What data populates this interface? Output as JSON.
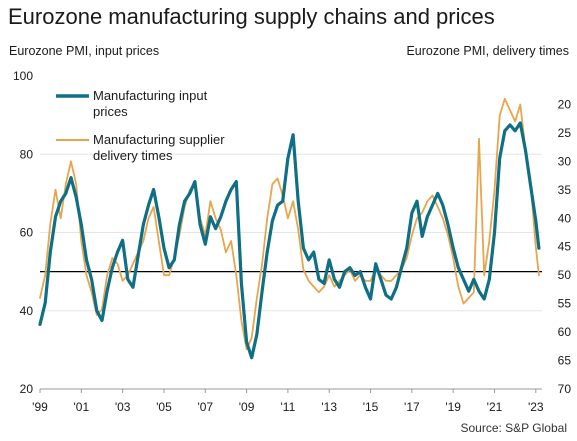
{
  "title": "Eurozone manufacturing supply chains and prices",
  "source": "Source: S&P Global",
  "chart_data": {
    "type": "line",
    "left_axis_label": "Eurozone PMI, input prices",
    "right_axis_label": "Eurozone PMI, delivery times",
    "left_ylim": [
      20,
      100
    ],
    "left_ticks": [
      20,
      40,
      60,
      80,
      100
    ],
    "right_ylim_inverted": [
      15,
      70
    ],
    "right_ticks": [
      20,
      25,
      30,
      35,
      40,
      45,
      50,
      55,
      60,
      65,
      70
    ],
    "xlim": [
      1999.0,
      2023.3
    ],
    "x_ticks": [
      {
        "x": 1999,
        "label": "'99"
      },
      {
        "x": 2001,
        "label": "'01"
      },
      {
        "x": 2003,
        "label": "'03"
      },
      {
        "x": 2005,
        "label": "'05"
      },
      {
        "x": 2007,
        "label": "'07"
      },
      {
        "x": 2009,
        "label": "'09"
      },
      {
        "x": 2011,
        "label": "'11"
      },
      {
        "x": 2013,
        "label": "'13"
      },
      {
        "x": 2015,
        "label": "'15"
      },
      {
        "x": 2017,
        "label": "'17"
      },
      {
        "x": 2019,
        "label": "'19"
      },
      {
        "x": 2021,
        "label": "'21"
      },
      {
        "x": 2023,
        "label": "'23"
      }
    ],
    "reference_line": 50,
    "grid": true,
    "legend": "top-left",
    "series": [
      {
        "name": "Manufacturing input prices",
        "axis": "left",
        "color": "#0e6f86",
        "points": [
          [
            1999.0,
            36.5
          ],
          [
            1999.25,
            42
          ],
          [
            1999.5,
            55
          ],
          [
            1999.75,
            64
          ],
          [
            2000.0,
            68
          ],
          [
            2000.25,
            70
          ],
          [
            2000.5,
            74
          ],
          [
            2000.75,
            69
          ],
          [
            2001.0,
            62
          ],
          [
            2001.25,
            53
          ],
          [
            2001.5,
            48
          ],
          [
            2001.75,
            40
          ],
          [
            2002.0,
            37.5
          ],
          [
            2002.25,
            45
          ],
          [
            2002.5,
            51
          ],
          [
            2002.75,
            55
          ],
          [
            2003.0,
            58
          ],
          [
            2003.25,
            48
          ],
          [
            2003.5,
            46
          ],
          [
            2003.75,
            54
          ],
          [
            2004.0,
            62
          ],
          [
            2004.25,
            67
          ],
          [
            2004.5,
            71
          ],
          [
            2004.75,
            64
          ],
          [
            2005.0,
            56
          ],
          [
            2005.25,
            51
          ],
          [
            2005.5,
            53
          ],
          [
            2005.75,
            62
          ],
          [
            2006.0,
            68
          ],
          [
            2006.25,
            70
          ],
          [
            2006.5,
            73
          ],
          [
            2006.75,
            62
          ],
          [
            2007.0,
            57
          ],
          [
            2007.25,
            64
          ],
          [
            2007.5,
            61
          ],
          [
            2007.75,
            64
          ],
          [
            2008.0,
            68
          ],
          [
            2008.25,
            71
          ],
          [
            2008.5,
            73
          ],
          [
            2008.75,
            47
          ],
          [
            2009.0,
            32
          ],
          [
            2009.25,
            28
          ],
          [
            2009.5,
            34
          ],
          [
            2009.75,
            45
          ],
          [
            2010.0,
            55
          ],
          [
            2010.25,
            63
          ],
          [
            2010.5,
            67
          ],
          [
            2010.75,
            68
          ],
          [
            2011.0,
            79
          ],
          [
            2011.25,
            85
          ],
          [
            2011.5,
            68
          ],
          [
            2011.75,
            56
          ],
          [
            2012.0,
            53
          ],
          [
            2012.25,
            55
          ],
          [
            2012.5,
            48
          ],
          [
            2012.75,
            47
          ],
          [
            2013.0,
            53
          ],
          [
            2013.25,
            48
          ],
          [
            2013.5,
            46
          ],
          [
            2013.75,
            50
          ],
          [
            2014.0,
            51
          ],
          [
            2014.25,
            49
          ],
          [
            2014.5,
            50
          ],
          [
            2014.75,
            46
          ],
          [
            2015.0,
            43
          ],
          [
            2015.25,
            52
          ],
          [
            2015.5,
            48
          ],
          [
            2015.75,
            44
          ],
          [
            2016.0,
            43
          ],
          [
            2016.25,
            46
          ],
          [
            2016.5,
            51
          ],
          [
            2016.75,
            56
          ],
          [
            2017.0,
            65
          ],
          [
            2017.25,
            68
          ],
          [
            2017.5,
            59
          ],
          [
            2017.75,
            64
          ],
          [
            2018.0,
            67
          ],
          [
            2018.25,
            70
          ],
          [
            2018.5,
            67
          ],
          [
            2018.75,
            62
          ],
          [
            2019.0,
            56
          ],
          [
            2019.25,
            51
          ],
          [
            2019.5,
            48
          ],
          [
            2019.75,
            45
          ],
          [
            2020.0,
            48
          ],
          [
            2020.25,
            45
          ],
          [
            2020.5,
            43
          ],
          [
            2020.75,
            48
          ],
          [
            2021.0,
            60
          ],
          [
            2021.25,
            79
          ],
          [
            2021.5,
            86
          ],
          [
            2021.75,
            87.5
          ],
          [
            2022.0,
            86
          ],
          [
            2022.25,
            88
          ],
          [
            2022.5,
            81
          ],
          [
            2022.75,
            72
          ],
          [
            2023.0,
            63
          ],
          [
            2023.15,
            56
          ]
        ]
      },
      {
        "name": "Manufacturing supplier delivery times",
        "axis": "right",
        "color": "#e8a54b",
        "points": [
          [
            1999.0,
            54
          ],
          [
            1999.25,
            50
          ],
          [
            1999.5,
            41
          ],
          [
            1999.75,
            35
          ],
          [
            2000.0,
            40
          ],
          [
            2000.25,
            34
          ],
          [
            2000.5,
            30
          ],
          [
            2000.75,
            34
          ],
          [
            2001.0,
            44
          ],
          [
            2001.25,
            50
          ],
          [
            2001.5,
            53
          ],
          [
            2001.75,
            57
          ],
          [
            2002.0,
            56
          ],
          [
            2002.25,
            50
          ],
          [
            2002.5,
            47
          ],
          [
            2002.75,
            48
          ],
          [
            2003.0,
            51
          ],
          [
            2003.25,
            50
          ],
          [
            2003.5,
            48
          ],
          [
            2003.75,
            46
          ],
          [
            2004.0,
            44
          ],
          [
            2004.25,
            40
          ],
          [
            2004.5,
            38
          ],
          [
            2004.75,
            44
          ],
          [
            2005.0,
            50
          ],
          [
            2005.25,
            50
          ],
          [
            2005.5,
            47
          ],
          [
            2005.75,
            43
          ],
          [
            2006.0,
            38
          ],
          [
            2006.25,
            35
          ],
          [
            2006.5,
            34
          ],
          [
            2006.75,
            40
          ],
          [
            2007.0,
            43
          ],
          [
            2007.25,
            37
          ],
          [
            2007.5,
            40
          ],
          [
            2007.75,
            42
          ],
          [
            2008.0,
            46
          ],
          [
            2008.25,
            44
          ],
          [
            2008.5,
            50
          ],
          [
            2008.75,
            58
          ],
          [
            2009.0,
            63
          ],
          [
            2009.25,
            61
          ],
          [
            2009.5,
            54
          ],
          [
            2009.75,
            48
          ],
          [
            2010.0,
            40
          ],
          [
            2010.25,
            34
          ],
          [
            2010.5,
            33
          ],
          [
            2010.75,
            36
          ],
          [
            2011.0,
            40
          ],
          [
            2011.25,
            37
          ],
          [
            2011.5,
            42
          ],
          [
            2011.75,
            49
          ],
          [
            2012.0,
            51
          ],
          [
            2012.25,
            52
          ],
          [
            2012.5,
            53
          ],
          [
            2012.75,
            52
          ],
          [
            2013.0,
            50
          ],
          [
            2013.25,
            52
          ],
          [
            2013.5,
            51
          ],
          [
            2013.75,
            50
          ],
          [
            2014.0,
            49
          ],
          [
            2014.25,
            51
          ],
          [
            2014.5,
            50
          ],
          [
            2014.75,
            51
          ],
          [
            2015.0,
            51
          ],
          [
            2015.25,
            49
          ],
          [
            2015.5,
            50
          ],
          [
            2015.75,
            51
          ],
          [
            2016.0,
            51
          ],
          [
            2016.25,
            50
          ],
          [
            2016.5,
            49
          ],
          [
            2016.75,
            47
          ],
          [
            2017.0,
            43
          ],
          [
            2017.25,
            40
          ],
          [
            2017.5,
            39
          ],
          [
            2017.75,
            37
          ],
          [
            2018.0,
            36
          ],
          [
            2018.25,
            38
          ],
          [
            2018.5,
            40
          ],
          [
            2018.75,
            43
          ],
          [
            2019.0,
            47
          ],
          [
            2019.25,
            52
          ],
          [
            2019.5,
            55
          ],
          [
            2019.75,
            54
          ],
          [
            2020.0,
            53
          ],
          [
            2020.25,
            26
          ],
          [
            2020.5,
            50
          ],
          [
            2020.75,
            44
          ],
          [
            2021.0,
            35
          ],
          [
            2021.25,
            22
          ],
          [
            2021.5,
            19
          ],
          [
            2021.75,
            21
          ],
          [
            2022.0,
            23
          ],
          [
            2022.25,
            20
          ],
          [
            2022.5,
            28
          ],
          [
            2022.75,
            34
          ],
          [
            2023.0,
            45
          ],
          [
            2023.15,
            50
          ]
        ]
      }
    ]
  }
}
